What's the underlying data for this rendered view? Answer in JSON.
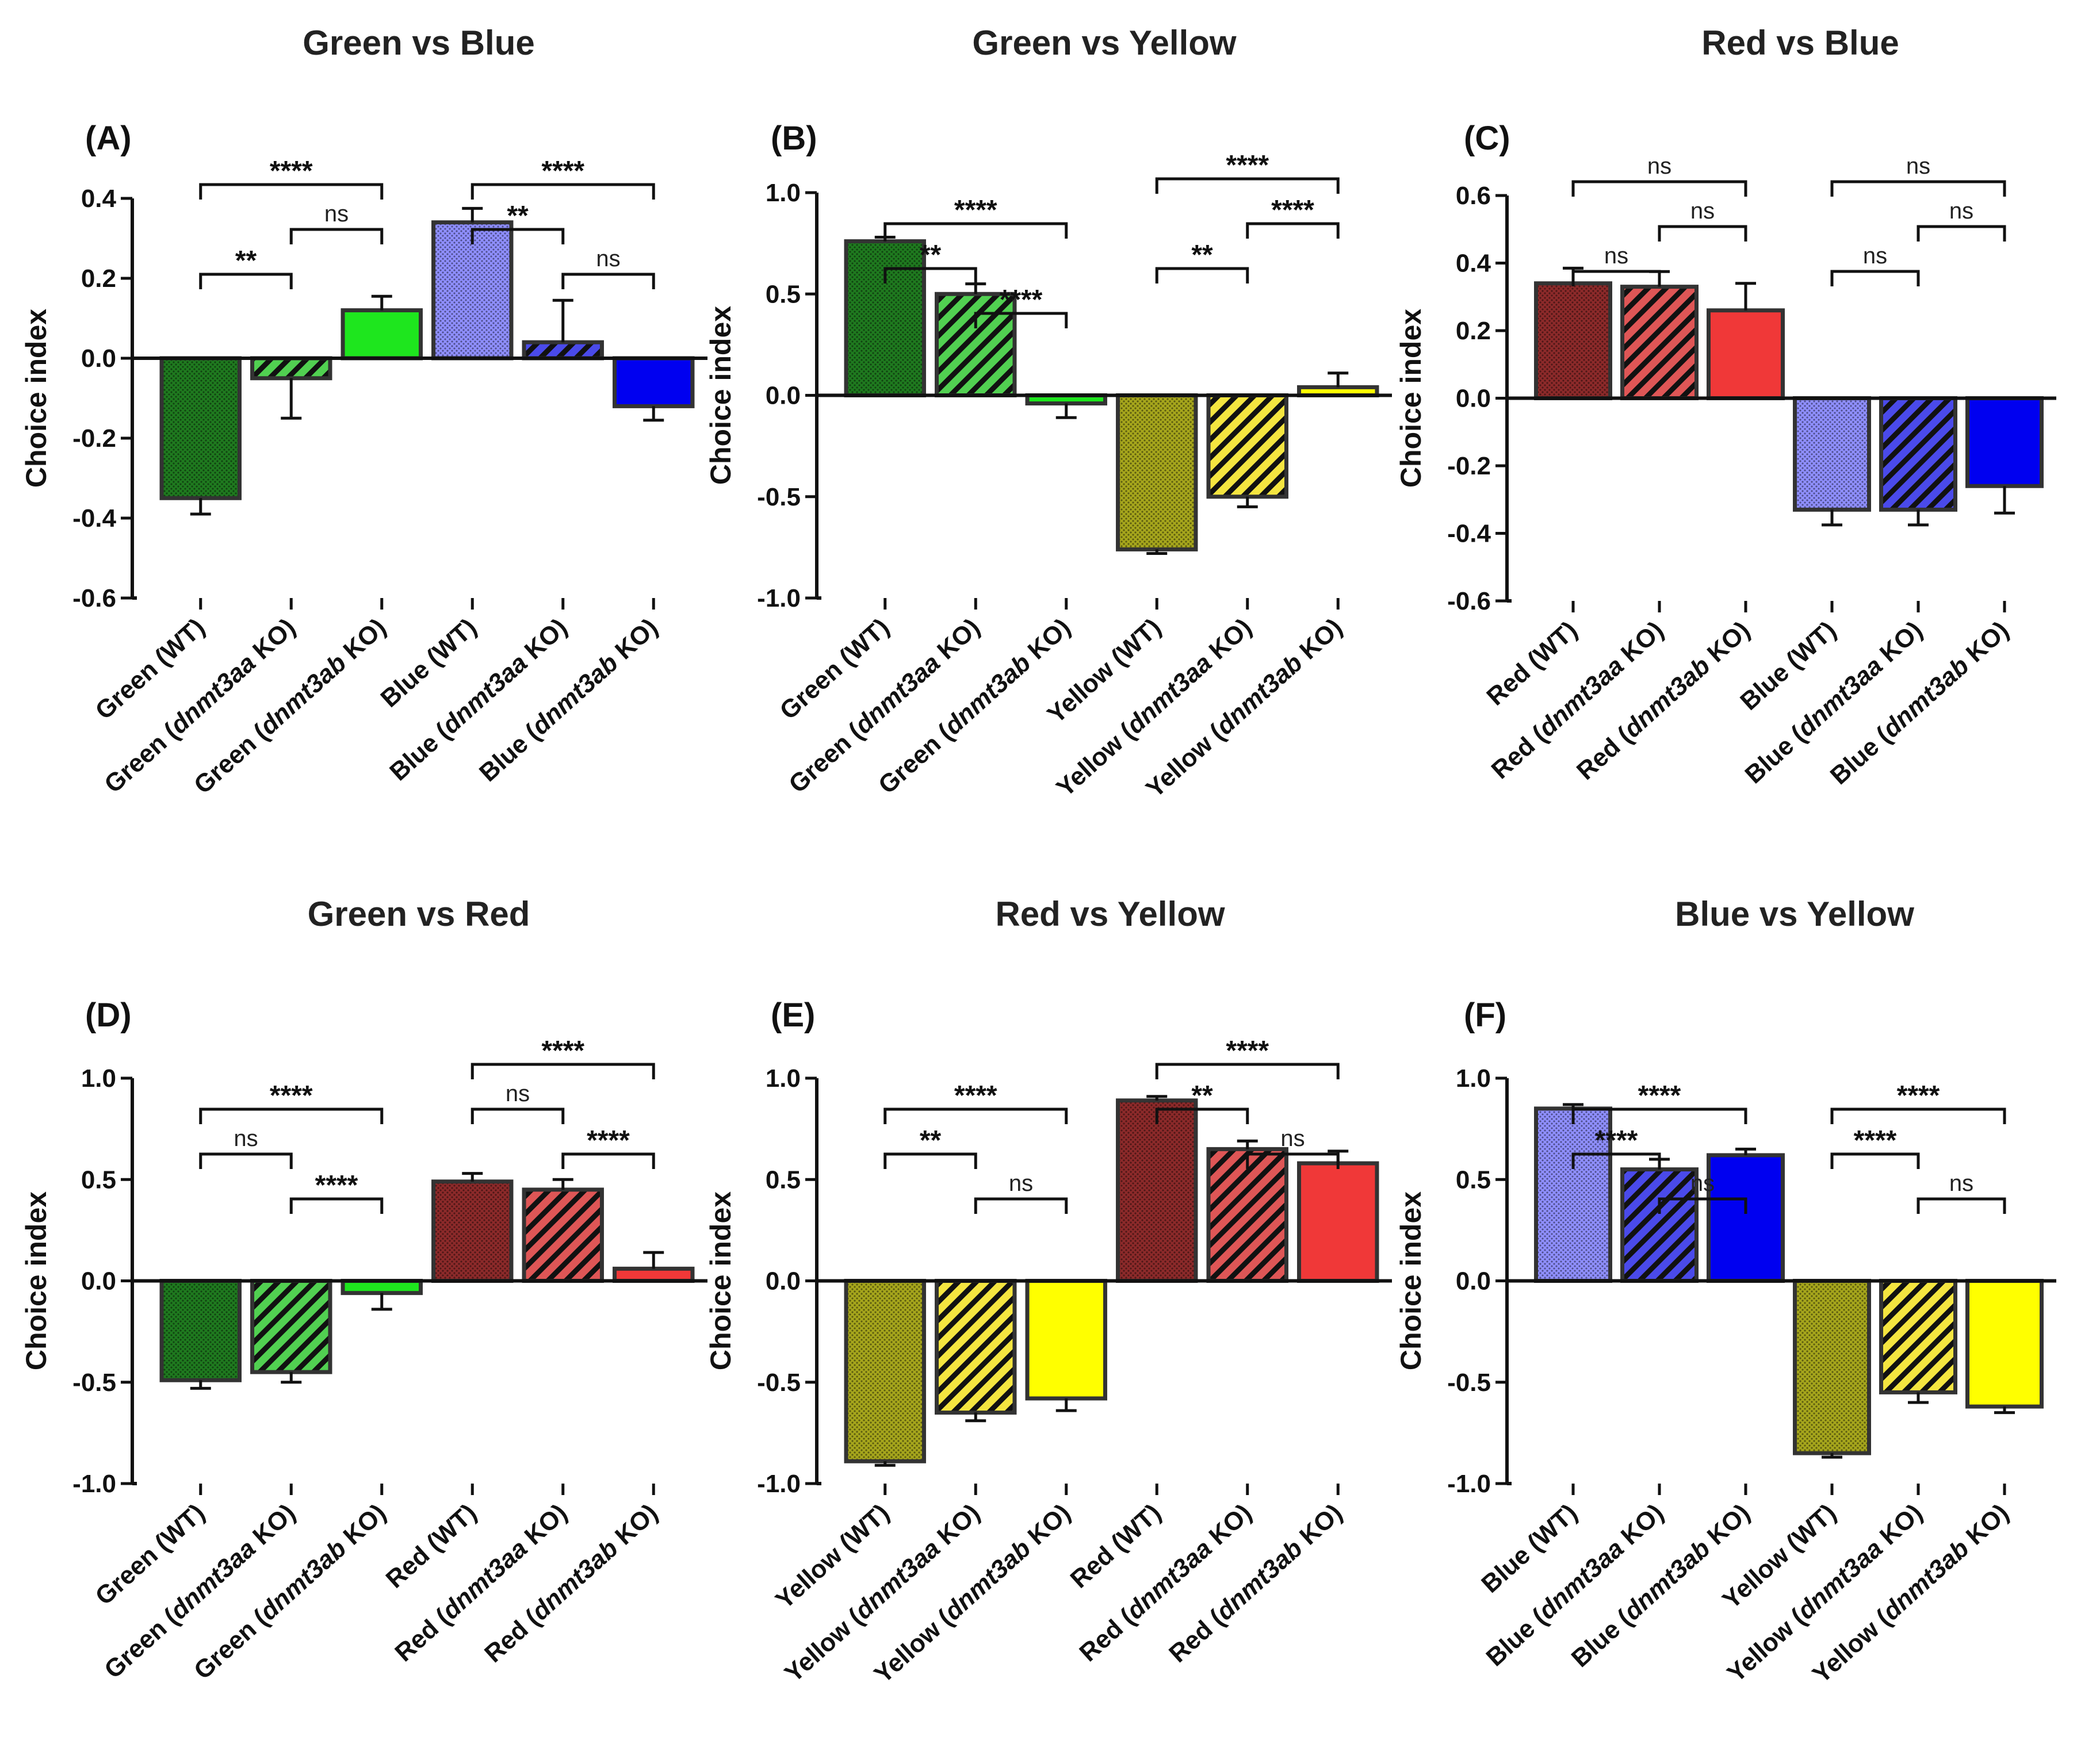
{
  "colors": {
    "green_dark": "#1f7a1f",
    "green_mid": "#32c832",
    "green_bright": "#1ee61e",
    "blue_light": "#8f8fff",
    "blue_mid": "#2a2ae6",
    "blue_bright": "#0000f0",
    "yellow_dark": "#a6a61c",
    "yellow_mid": "#f2e01e",
    "yellow_bright": "#ffff00",
    "red_dark": "#8c2a2a",
    "red_mid": "#d83838",
    "red_bright": "#f03838",
    "outline": "#333333"
  },
  "chart_data": [
    {
      "panel": "(A)",
      "type": "bar",
      "title": "Green vs Blue",
      "ylabel": "Choice index",
      "ylim": [
        -0.6,
        0.4
      ],
      "yticks": [
        "0.4",
        "0.2",
        "0.0",
        "-0.2",
        "-0.4",
        "-0.6"
      ],
      "ytick_values": [
        0.4,
        0.2,
        0.0,
        -0.2,
        -0.4,
        -0.6
      ],
      "categories": [
        {
          "base": "Green",
          "suffix": "(WT)",
          "gene": ""
        },
        {
          "base": "Green",
          "suffix": "KO)",
          "gene": "dnmt3aa"
        },
        {
          "base": "Green",
          "suffix": "KO)",
          "gene": "dnmt3ab"
        },
        {
          "base": "Blue",
          "suffix": "(WT)",
          "gene": ""
        },
        {
          "base": "Blue",
          "suffix": "KO)",
          "gene": "dnmt3aa"
        },
        {
          "base": "Blue",
          "suffix": "KO)",
          "gene": "dnmt3ab"
        }
      ],
      "values": [
        -0.35,
        -0.05,
        0.12,
        0.34,
        0.04,
        -0.12
      ],
      "errors": [
        0.04,
        0.1,
        0.035,
        0.035,
        0.105,
        0.035
      ],
      "fills": [
        "green_dark",
        "green_mid",
        "green_bright",
        "blue_light",
        "blue_mid",
        "blue_bright"
      ],
      "patterns": [
        "dots",
        "hatch",
        "solid",
        "dots",
        "hatch",
        "solid"
      ],
      "comparisons": [
        {
          "from": 0,
          "to": 1,
          "label": "**",
          "level": 1
        },
        {
          "from": 1,
          "to": 2,
          "label": "ns",
          "level": 2
        },
        {
          "from": 0,
          "to": 2,
          "label": "****",
          "level": 3
        },
        {
          "from": 4,
          "to": 5,
          "label": "ns",
          "level": 1
        },
        {
          "from": 3,
          "to": 4,
          "label": "**",
          "level": 2
        },
        {
          "from": 3,
          "to": 5,
          "label": "****",
          "level": 3
        }
      ]
    },
    {
      "panel": "(B)",
      "type": "bar",
      "title": "Green vs Yellow",
      "ylabel": "Choice index",
      "ylim": [
        -1.0,
        1.0
      ],
      "yticks": [
        "1.0",
        "0.5",
        "0.0",
        "-0.5",
        "-1.0"
      ],
      "ytick_values": [
        1.0,
        0.5,
        0.0,
        -0.5,
        -1.0
      ],
      "categories": [
        {
          "base": "Green",
          "suffix": "(WT)",
          "gene": ""
        },
        {
          "base": "Green",
          "suffix": "KO)",
          "gene": "dnmt3aa"
        },
        {
          "base": "Green",
          "suffix": "KO)",
          "gene": "dnmt3ab"
        },
        {
          "base": "Yellow",
          "suffix": "(WT)",
          "gene": ""
        },
        {
          "base": "Yellow",
          "suffix": "KO)",
          "gene": "dnmt3aa"
        },
        {
          "base": "Yellow",
          "suffix": "KO)",
          "gene": "dnmt3ab"
        }
      ],
      "values": [
        0.76,
        0.5,
        -0.04,
        -0.76,
        -0.5,
        0.04
      ],
      "errors": [
        0.02,
        0.05,
        0.07,
        0.02,
        0.05,
        0.07
      ],
      "fills": [
        "green_dark",
        "green_mid",
        "green_bright",
        "yellow_dark",
        "yellow_mid",
        "yellow_bright"
      ],
      "patterns": [
        "dots",
        "hatch",
        "solid",
        "dots",
        "hatch",
        "solid"
      ],
      "comparisons": [
        {
          "from": 0,
          "to": 1,
          "label": "**",
          "level": 1
        },
        {
          "from": 1,
          "to": 2,
          "label": "****",
          "level": 0
        },
        {
          "from": 0,
          "to": 2,
          "label": "****",
          "level": 2
        },
        {
          "from": 3,
          "to": 4,
          "label": "**",
          "level": 1
        },
        {
          "from": 4,
          "to": 5,
          "label": "****",
          "level": 2
        },
        {
          "from": 3,
          "to": 5,
          "label": "****",
          "level": 3
        }
      ]
    },
    {
      "panel": "(C)",
      "type": "bar",
      "title": "Red vs Blue",
      "ylabel": "Choice index",
      "ylim": [
        -0.6,
        0.6
      ],
      "yticks": [
        "0.6",
        "0.4",
        "0.2",
        "0.0",
        "-0.2",
        "-0.4",
        "-0.6"
      ],
      "ytick_values": [
        0.6,
        0.4,
        0.2,
        0.0,
        -0.2,
        -0.4,
        -0.6
      ],
      "categories": [
        {
          "base": "Red",
          "suffix": "(WT)",
          "gene": ""
        },
        {
          "base": "Red",
          "suffix": "KO)",
          "gene": "dnmt3aa"
        },
        {
          "base": "Red",
          "suffix": "KO)",
          "gene": "dnmt3ab"
        },
        {
          "base": "Blue",
          "suffix": "(WT)",
          "gene": ""
        },
        {
          "base": "Blue",
          "suffix": "KO)",
          "gene": "dnmt3aa"
        },
        {
          "base": "Blue",
          "suffix": "KO)",
          "gene": "dnmt3ab"
        }
      ],
      "values": [
        0.34,
        0.33,
        0.26,
        -0.33,
        -0.33,
        -0.26
      ],
      "errors": [
        0.045,
        0.045,
        0.08,
        0.045,
        0.045,
        0.08
      ],
      "fills": [
        "red_dark",
        "red_mid",
        "red_bright",
        "blue_light",
        "blue_mid",
        "blue_bright"
      ],
      "patterns": [
        "dots",
        "hatch",
        "solid",
        "dots",
        "hatch",
        "solid"
      ],
      "comparisons": [
        {
          "from": 0,
          "to": 1,
          "label": "ns",
          "level": 1
        },
        {
          "from": 1,
          "to": 2,
          "label": "ns",
          "level": 2
        },
        {
          "from": 0,
          "to": 2,
          "label": "ns",
          "level": 3
        },
        {
          "from": 3,
          "to": 4,
          "label": "ns",
          "level": 1
        },
        {
          "from": 4,
          "to": 5,
          "label": "ns",
          "level": 2
        },
        {
          "from": 3,
          "to": 5,
          "label": "ns",
          "level": 3
        }
      ]
    },
    {
      "panel": "(D)",
      "type": "bar",
      "title": "Green vs Red",
      "ylabel": "Choice index",
      "ylim": [
        -1.0,
        1.0
      ],
      "yticks": [
        "1.0",
        "0.5",
        "0.0",
        "-0.5",
        "-1.0"
      ],
      "ytick_values": [
        1.0,
        0.5,
        0.0,
        -0.5,
        -1.0
      ],
      "categories": [
        {
          "base": "Green",
          "suffix": "(WT)",
          "gene": ""
        },
        {
          "base": "Green",
          "suffix": "KO)",
          "gene": "dnmt3aa"
        },
        {
          "base": "Green",
          "suffix": "KO)",
          "gene": "dnmt3ab"
        },
        {
          "base": "Red",
          "suffix": "(WT)",
          "gene": ""
        },
        {
          "base": "Red",
          "suffix": "KO)",
          "gene": "dnmt3aa"
        },
        {
          "base": "Red",
          "suffix": "KO)",
          "gene": "dnmt3ab"
        }
      ],
      "values": [
        -0.49,
        -0.45,
        -0.06,
        0.49,
        0.45,
        0.06
      ],
      "errors": [
        0.04,
        0.05,
        0.08,
        0.04,
        0.05,
        0.08
      ],
      "fills": [
        "green_dark",
        "green_mid",
        "green_bright",
        "red_dark",
        "red_mid",
        "red_bright"
      ],
      "patterns": [
        "dots",
        "hatch",
        "solid",
        "dots",
        "hatch",
        "solid"
      ],
      "comparisons": [
        {
          "from": 1,
          "to": 2,
          "label": "****",
          "level": 0
        },
        {
          "from": 0,
          "to": 1,
          "label": "ns",
          "level": 1
        },
        {
          "from": 0,
          "to": 2,
          "label": "****",
          "level": 2
        },
        {
          "from": 4,
          "to": 5,
          "label": "****",
          "level": 1
        },
        {
          "from": 3,
          "to": 4,
          "label": "ns",
          "level": 2
        },
        {
          "from": 3,
          "to": 5,
          "label": "****",
          "level": 3
        }
      ]
    },
    {
      "panel": "(E)",
      "type": "bar",
      "title": "Red vs Yellow",
      "ylabel": "Choice index",
      "ylim": [
        -1.0,
        1.0
      ],
      "yticks": [
        "1.0",
        "0.5",
        "0.0",
        "-0.5",
        "-1.0"
      ],
      "ytick_values": [
        1.0,
        0.5,
        0.0,
        -0.5,
        -1.0
      ],
      "categories": [
        {
          "base": "Yellow",
          "suffix": "(WT)",
          "gene": ""
        },
        {
          "base": "Yellow",
          "suffix": "KO)",
          "gene": "dnmt3aa"
        },
        {
          "base": "Yellow",
          "suffix": "KO)",
          "gene": "dnmt3ab"
        },
        {
          "base": "Red",
          "suffix": "(WT)",
          "gene": ""
        },
        {
          "base": "Red",
          "suffix": "KO)",
          "gene": "dnmt3aa"
        },
        {
          "base": "Red",
          "suffix": "KO)",
          "gene": "dnmt3ab"
        }
      ],
      "values": [
        -0.89,
        -0.65,
        -0.58,
        0.89,
        0.65,
        0.58
      ],
      "errors": [
        0.02,
        0.04,
        0.06,
        0.02,
        0.04,
        0.06
      ],
      "fills": [
        "yellow_dark",
        "yellow_mid",
        "yellow_bright",
        "red_dark",
        "red_mid",
        "red_bright"
      ],
      "patterns": [
        "dots",
        "hatch",
        "solid",
        "dots",
        "hatch",
        "solid"
      ],
      "comparisons": [
        {
          "from": 1,
          "to": 2,
          "label": "ns",
          "level": 0
        },
        {
          "from": 0,
          "to": 1,
          "label": "**",
          "level": 1
        },
        {
          "from": 0,
          "to": 2,
          "label": "****",
          "level": 2
        },
        {
          "from": 4,
          "to": 5,
          "label": "ns",
          "level": 1
        },
        {
          "from": 3,
          "to": 4,
          "label": "**",
          "level": 2
        },
        {
          "from": 3,
          "to": 5,
          "label": "****",
          "level": 3
        }
      ]
    },
    {
      "panel": "(F)",
      "type": "bar",
      "title": "Blue vs Yellow",
      "ylabel": "Choice index",
      "ylim": [
        -1.0,
        1.0
      ],
      "yticks": [
        "1.0",
        "0.5",
        "0.0",
        "-0.5",
        "-1.0"
      ],
      "ytick_values": [
        1.0,
        0.5,
        0.0,
        -0.5,
        -1.0
      ],
      "categories": [
        {
          "base": "Blue",
          "suffix": "(WT)",
          "gene": ""
        },
        {
          "base": "Blue",
          "suffix": "KO)",
          "gene": "dnmt3aa"
        },
        {
          "base": "Blue",
          "suffix": "KO)",
          "gene": "dnmt3ab"
        },
        {
          "base": "Yellow",
          "suffix": "(WT)",
          "gene": ""
        },
        {
          "base": "Yellow",
          "suffix": "KO)",
          "gene": "dnmt3aa"
        },
        {
          "base": "Yellow",
          "suffix": "KO)",
          "gene": "dnmt3ab"
        }
      ],
      "values": [
        0.85,
        0.55,
        0.62,
        -0.85,
        -0.55,
        -0.62
      ],
      "errors": [
        0.02,
        0.05,
        0.03,
        0.02,
        0.05,
        0.03
      ],
      "fills": [
        "blue_light",
        "blue_mid",
        "blue_bright",
        "yellow_dark",
        "yellow_mid",
        "yellow_bright"
      ],
      "patterns": [
        "dots",
        "hatch",
        "solid",
        "dots",
        "hatch",
        "solid"
      ],
      "comparisons": [
        {
          "from": 1,
          "to": 2,
          "label": "ns",
          "level": 0
        },
        {
          "from": 0,
          "to": 1,
          "label": "****",
          "level": 1
        },
        {
          "from": 0,
          "to": 2,
          "label": "****",
          "level": 2
        },
        {
          "from": 4,
          "to": 5,
          "label": "ns",
          "level": 0
        },
        {
          "from": 3,
          "to": 4,
          "label": "****",
          "level": 1
        },
        {
          "from": 3,
          "to": 5,
          "label": "****",
          "level": 2
        }
      ]
    }
  ]
}
